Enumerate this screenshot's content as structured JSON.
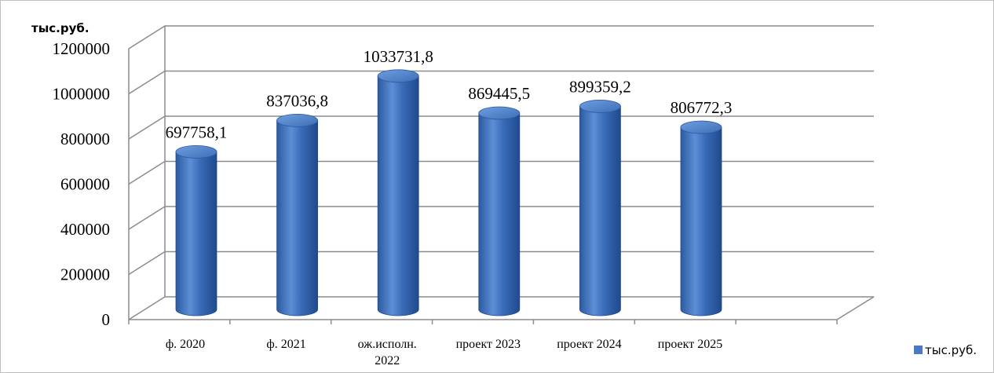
{
  "chart_data": {
    "type": "bar",
    "style": "3d-cylinder",
    "ylabel": "тыс.руб.",
    "categories": [
      "ф. 2020",
      "ф. 2021",
      "ож.исполн. 2022",
      "проект 2023",
      "проект 2024",
      "проект 2025"
    ],
    "series": [
      {
        "name": "тыс.руб.",
        "color": "#4a7ac6",
        "values": [
          697758.1,
          837036.8,
          1033731.8,
          869445.5,
          899359.2,
          806772.3
        ],
        "labels": [
          "697758,1",
          "837036,8",
          "1033731,8",
          "869445,5",
          "899359,2",
          "806772,3"
        ]
      }
    ],
    "ylim": [
      0,
      1200000
    ],
    "yticks": [
      "0",
      "200000",
      "400000",
      "600000",
      "800000",
      "1000000",
      "1200000"
    ],
    "grid": true,
    "legend": "bottom-right"
  }
}
